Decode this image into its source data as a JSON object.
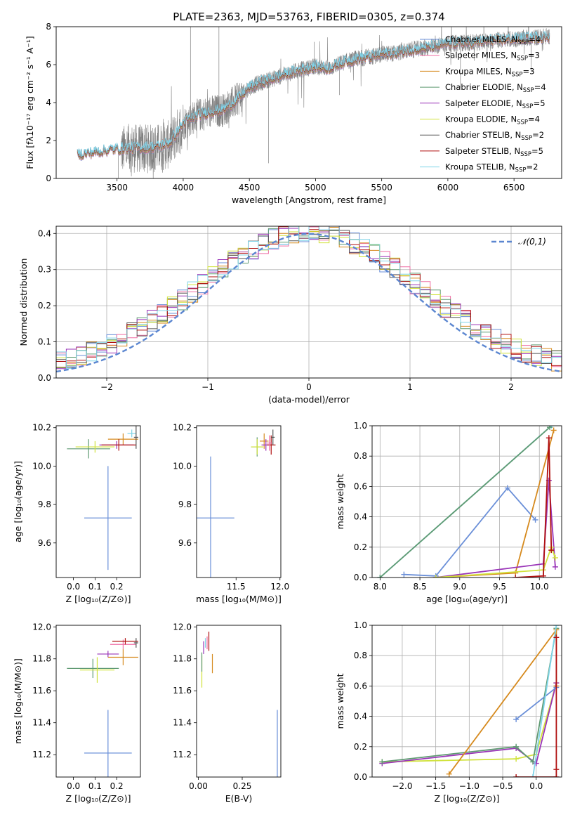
{
  "figure_title": "PLATE=2363, MJD=53763, FIBERID=0305, z=0.374",
  "colors": {
    "Chabrier MILES": "#6a8fd8",
    "Salpeter MILES": "#ef6da4",
    "Kroupa MILES": "#d68a1e",
    "Chabrier ELODIE": "#5f9a72",
    "Salpeter ELODIE": "#9a35b8",
    "Kroupa ELODIE": "#d0e23a",
    "Chabrier STELIB": "#555555",
    "Salpeter STELIB": "#b01010",
    "Kroupa STELIB": "#7fd4e8",
    "data": "#808080",
    "normal": "#5b86d0"
  },
  "chart_data": [
    {
      "id": "spectrum",
      "type": "line",
      "xlabel": "wavelength [Angstrom, rest frame]",
      "ylabel": "Flux [fλ10⁻¹⁷ erg cm⁻² s⁻¹ A⁻¹]",
      "xlim": [
        3040,
        6860
      ],
      "ylim": [
        0,
        8
      ],
      "xticks": [
        3500,
        4000,
        4500,
        5000,
        5500,
        6000,
        6500
      ],
      "yticks": [
        0,
        2,
        4,
        6,
        8
      ],
      "legend_position": "top-right",
      "legend": [
        {
          "name": "Chabrier MILES",
          "sub": "SSP",
          "n": "4"
        },
        {
          "name": "Salpeter MILES",
          "sub": "SSP",
          "n": "3"
        },
        {
          "name": "Kroupa MILES",
          "sub": "SSP",
          "n": "3"
        },
        {
          "name": "Chabrier ELODIE",
          "sub": "SSP",
          "n": "4"
        },
        {
          "name": "Salpeter ELODIE",
          "sub": "SSP",
          "n": "5"
        },
        {
          "name": "Kroupa ELODIE",
          "sub": "SSP",
          "n": "4"
        },
        {
          "name": "Chabrier STELIB",
          "sub": "SSP",
          "n": "2"
        },
        {
          "name": "Salpeter STELIB",
          "sub": "SSP",
          "n": "5"
        },
        {
          "name": "Kroupa STELIB",
          "sub": "SSP",
          "n": "2"
        }
      ],
      "model_continuum": {
        "x": [
          3200,
          3300,
          3400,
          3500,
          3600,
          3700,
          3800,
          3900,
          4000,
          4100,
          4200,
          4300,
          4400,
          4500,
          4600,
          4700,
          4800,
          4900,
          5000,
          5100,
          5200,
          5300,
          5400,
          5500,
          5600,
          5700,
          5800,
          5900,
          6000,
          6100,
          6200,
          6300,
          6400,
          6500,
          6600,
          6700,
          6770
        ],
        "y": [
          1.25,
          1.35,
          1.45,
          1.55,
          1.6,
          1.62,
          1.65,
          1.9,
          2.9,
          3.3,
          3.5,
          3.6,
          4.1,
          4.8,
          5.1,
          5.3,
          5.55,
          5.75,
          5.9,
          5.8,
          6.1,
          6.3,
          6.4,
          6.55,
          6.6,
          6.75,
          6.85,
          6.95,
          7.1,
          7.15,
          7.15,
          7.25,
          7.3,
          7.35,
          7.4,
          7.45,
          7.5
        ]
      },
      "data_continuum": {
        "x": [
          3530,
          3600,
          3700,
          3800,
          3900,
          4000,
          4100,
          4200,
          4300,
          4400,
          4500,
          4600,
          4700,
          4800,
          4900,
          5000,
          5100,
          5200,
          5300,
          5400,
          5500,
          5600,
          5700,
          5800,
          5900,
          6000,
          6100,
          6200,
          6300,
          6400,
          6500,
          6600,
          6700,
          6770
        ],
        "y": [
          1.5,
          1.6,
          1.55,
          1.6,
          1.8,
          2.9,
          3.3,
          3.5,
          3.6,
          4.1,
          4.8,
          5.1,
          5.3,
          5.55,
          5.75,
          5.9,
          5.8,
          6.1,
          6.3,
          6.4,
          6.55,
          6.6,
          6.75,
          6.85,
          6.95,
          7.1,
          7.15,
          7.15,
          7.25,
          7.3,
          7.35,
          7.4,
          7.45,
          7.5
        ]
      }
    },
    {
      "id": "residuals",
      "type": "line",
      "xlabel": "(data-model)/error",
      "ylabel": "Normed distribution",
      "xlim": [
        -2.5,
        2.5
      ],
      "ylim": [
        0,
        0.42
      ],
      "xticks": [
        -2,
        -1,
        0,
        1,
        2
      ],
      "yticks": [
        0.0,
        0.1,
        0.2,
        0.3,
        0.4
      ],
      "grid": true,
      "legend_position": "top-right",
      "legend": [
        {
          "name": "𝒩(0,1)"
        }
      ],
      "bin_width": 0.1,
      "reference_curve": "standard normal"
    },
    {
      "id": "age-vs-Z",
      "type": "scatter",
      "xlabel": "Z [log₁₀(Z/Z⊙)]",
      "ylabel": "age  [log₁₀(age/yr)]",
      "xlim": [
        -0.08,
        0.31
      ],
      "ylim": [
        9.42,
        10.21
      ],
      "xticks": [
        0.0,
        0.1,
        0.2
      ],
      "yticks": [
        9.6,
        9.8,
        10.0,
        10.2
      ],
      "points": [
        {
          "model": "Chabrier MILES",
          "x": 0.16,
          "y": 9.73,
          "xerr": 0.11,
          "yerr": 0.27
        },
        {
          "model": "Chabrier ELODIE",
          "x": 0.07,
          "y": 10.09,
          "xerr": 0.1,
          "yerr": 0.05
        },
        {
          "model": "Kroupa ELODIE",
          "x": 0.1,
          "y": 10.1,
          "xerr": 0.09,
          "yerr": 0.03
        },
        {
          "model": "Kroupa MILES",
          "x": 0.23,
          "y": 10.14,
          "xerr": 0.07,
          "yerr": 0.03
        },
        {
          "model": "Salpeter ELODIE",
          "x": 0.2,
          "y": 10.11,
          "xerr": 0.08,
          "yerr": 0.02
        },
        {
          "model": "Salpeter STELIB",
          "x": 0.21,
          "y": 10.11,
          "xerr": 0.08,
          "yerr": 0.03
        },
        {
          "model": "Kroupa STELIB",
          "x": 0.27,
          "y": 10.17,
          "xerr": 0.02,
          "yerr": 0.02
        },
        {
          "model": "Chabrier STELIB",
          "x": 0.29,
          "y": 10.15,
          "xerr": 0.01,
          "yerr": 0.06
        }
      ]
    },
    {
      "id": "age-vs-mass",
      "type": "scatter",
      "xlabel": "mass [log₁₀(M/M⊙)]",
      "ylabel": "",
      "xlim": [
        11.05,
        12.01
      ],
      "ylim": [
        9.42,
        10.21
      ],
      "xticks": [
        11.5,
        12.0
      ],
      "yticks": [
        9.6,
        9.8,
        10.0,
        10.2
      ],
      "points": [
        {
          "model": "Chabrier MILES",
          "x": 11.21,
          "y": 9.73,
          "xerr": 0.27,
          "yerr": 0.32
        },
        {
          "model": "Chabrier ELODIE",
          "x": 11.74,
          "y": 10.1,
          "xerr": 0.07,
          "yerr": 0.05
        },
        {
          "model": "Kroupa ELODIE",
          "x": 11.74,
          "y": 10.1,
          "xerr": 0.07,
          "yerr": 0.04
        },
        {
          "model": "Kroupa MILES",
          "x": 11.82,
          "y": 10.13,
          "xerr": 0.05,
          "yerr": 0.04
        },
        {
          "model": "Salpeter ELODIE",
          "x": 11.84,
          "y": 10.11,
          "xerr": 0.05,
          "yerr": 0.03
        },
        {
          "model": "Salpeter STELIB",
          "x": 11.9,
          "y": 10.11,
          "xerr": 0.05,
          "yerr": 0.05
        },
        {
          "model": "Chabrier STELIB",
          "x": 11.92,
          "y": 10.15,
          "xerr": 0.02,
          "yerr": 0.04
        },
        {
          "model": "Salpeter MILES",
          "x": 11.88,
          "y": 10.12,
          "xerr": 0.03,
          "yerr": 0.04
        }
      ]
    },
    {
      "id": "massweight-vs-age",
      "type": "line",
      "xlabel": "age  [log₁₀(age/yr)]",
      "ylabel": "mass weight",
      "xlim": [
        7.9,
        10.28
      ],
      "ylim": [
        0,
        1.0
      ],
      "xticks": [
        8.0,
        8.5,
        9.0,
        9.5,
        10.0
      ],
      "yticks": [
        0.0,
        0.2,
        0.4,
        0.6,
        0.8,
        1.0
      ],
      "grid": true,
      "series": [
        {
          "model": "Kroupa STELIB",
          "x": [
            8.0,
            10.15
          ],
          "y": [
            0.0,
            1.0
          ]
        },
        {
          "model": "Chabrier ELODIE",
          "x": [
            8.0,
            10.13
          ],
          "y": [
            0.0,
            0.99
          ]
        },
        {
          "model": "Chabrier MILES",
          "x": [
            8.3,
            8.7,
            9.6,
            9.95
          ],
          "y": [
            0.02,
            0.01,
            0.59,
            0.38
          ]
        },
        {
          "model": "Kroupa MILES",
          "x": [
            8.7,
            9.7,
            10.18
          ],
          "y": [
            0.0,
            0.03,
            0.97
          ]
        },
        {
          "model": "Salpeter ELODIE",
          "x": [
            8.7,
            10.05,
            10.12,
            10.2
          ],
          "y": [
            0.0,
            0.09,
            0.64,
            0.07
          ]
        },
        {
          "model": "Kroupa ELODIE",
          "x": [
            8.7,
            10.05,
            10.15,
            10.2
          ],
          "y": [
            0.0,
            0.05,
            0.2,
            0.13
          ]
        },
        {
          "model": "Salpeter STELIB",
          "x": [
            9.7,
            10.05,
            10.12,
            10.15
          ],
          "y": [
            0.0,
            0.01,
            0.92,
            0.18
          ]
        }
      ]
    },
    {
      "id": "mass-vs-Z",
      "type": "scatter",
      "xlabel": "Z [log₁₀(Z/Z⊙)]",
      "ylabel": "mass [log₁₀(M/M⊙)]",
      "xlim": [
        -0.08,
        0.31
      ],
      "ylim": [
        11.06,
        12.01
      ],
      "xticks": [
        0.0,
        0.1,
        0.2
      ],
      "yticks": [
        11.2,
        11.4,
        11.6,
        11.8,
        12.0
      ],
      "points": [
        {
          "model": "Chabrier MILES",
          "x": 0.16,
          "y": 11.21,
          "xerr": 0.11,
          "yerr": 0.27
        },
        {
          "model": "Chabrier ELODIE",
          "x": 0.09,
          "y": 11.74,
          "xerr": 0.12,
          "yerr": 0.06
        },
        {
          "model": "Kroupa ELODIE",
          "x": 0.11,
          "y": 11.73,
          "xerr": 0.08,
          "yerr": 0.08
        },
        {
          "model": "Salpeter ELODIE",
          "x": 0.16,
          "y": 11.83,
          "xerr": 0.05,
          "yerr": 0.02
        },
        {
          "model": "Kroupa MILES",
          "x": 0.23,
          "y": 11.81,
          "xerr": 0.07,
          "yerr": 0.05
        },
        {
          "model": "Salpeter MILES",
          "x": 0.23,
          "y": 11.89,
          "xerr": 0.06,
          "yerr": 0.03
        },
        {
          "model": "Salpeter STELIB",
          "x": 0.24,
          "y": 11.91,
          "xerr": 0.06,
          "yerr": 0.02
        },
        {
          "model": "Chabrier STELIB",
          "x": 0.29,
          "y": 11.9,
          "xerr": 0.01,
          "yerr": 0.03
        }
      ]
    },
    {
      "id": "mass-vs-EBV",
      "type": "scatter",
      "xlabel": "E(B-V)",
      "ylabel": "",
      "xlim": [
        -0.01,
        0.47
      ],
      "ylim": [
        11.06,
        12.01
      ],
      "xticks": [
        0.0,
        0.25
      ],
      "yticks": [
        11.2,
        11.4,
        11.6,
        11.8,
        12.0
      ],
      "points": [
        {
          "model": "Chabrier MILES",
          "x": 0.45,
          "y": 11.21,
          "xerr": 0.0,
          "yerr": 0.27
        },
        {
          "model": "Kroupa ELODIE",
          "x": 0.02,
          "y": 11.72,
          "xerr": 0.0,
          "yerr": 0.1
        },
        {
          "model": "Chabrier ELODIE",
          "x": 0.02,
          "y": 11.78,
          "xerr": 0.0,
          "yerr": 0.06
        },
        {
          "model": "Salpeter ELODIE",
          "x": 0.03,
          "y": 11.87,
          "xerr": 0.0,
          "yerr": 0.04
        },
        {
          "model": "Kroupa STELIB",
          "x": 0.04,
          "y": 11.9,
          "xerr": 0.0,
          "yerr": 0.03
        },
        {
          "model": "Kroupa MILES",
          "x": 0.08,
          "y": 11.77,
          "xerr": 0.0,
          "yerr": 0.06
        },
        {
          "model": "Salpeter STELIB",
          "x": 0.06,
          "y": 11.91,
          "xerr": 0.0,
          "yerr": 0.06
        },
        {
          "model": "Salpeter MILES",
          "x": 0.05,
          "y": 11.9,
          "xerr": 0.0,
          "yerr": 0.04
        }
      ]
    },
    {
      "id": "massweight-vs-Z",
      "type": "line",
      "xlabel": "Z [log₁₀(Z/Z⊙)]",
      "ylabel": "mass weight",
      "xlim": [
        -2.45,
        0.38
      ],
      "ylim": [
        0,
        1.0
      ],
      "xticks": [
        -2.0,
        -1.5,
        -1.0,
        -0.5,
        0.0
      ],
      "yticks": [
        0.0,
        0.2,
        0.4,
        0.6,
        0.8,
        1.0
      ],
      "grid": true,
      "series": [
        {
          "model": "Kroupa ELODIE",
          "x": [
            -2.3,
            -0.3,
            0.0,
            0.3
          ],
          "y": [
            0.1,
            0.12,
            0.15,
            0.62
          ]
        },
        {
          "model": "Salpeter ELODIE",
          "x": [
            -2.3,
            -0.3,
            0.0,
            0.3
          ],
          "y": [
            0.09,
            0.19,
            0.09,
            0.62
          ]
        },
        {
          "model": "Chabrier ELODIE",
          "x": [
            -2.3,
            -0.3,
            -0.05,
            0.3
          ],
          "y": [
            0.1,
            0.2,
            0.1,
            0.98
          ]
        },
        {
          "model": "Kroupa MILES",
          "x": [
            -1.3,
            0.3,
            0.3
          ],
          "y": [
            0.02,
            0.97,
            0.6
          ]
        },
        {
          "model": "Chabrier MILES",
          "x": [
            -0.3,
            0.3
          ],
          "y": [
            0.38,
            0.59
          ]
        },
        {
          "model": "Kroupa STELIB",
          "x": [
            -0.05,
            0.3
          ],
          "y": [
            0.0,
            1.0
          ]
        },
        {
          "model": "Salpeter STELIB",
          "x": [
            -0.3,
            0.3,
            0.3,
            0.3
          ],
          "y": [
            0.0,
            0.0,
            0.92,
            0.05
          ]
        }
      ]
    }
  ]
}
